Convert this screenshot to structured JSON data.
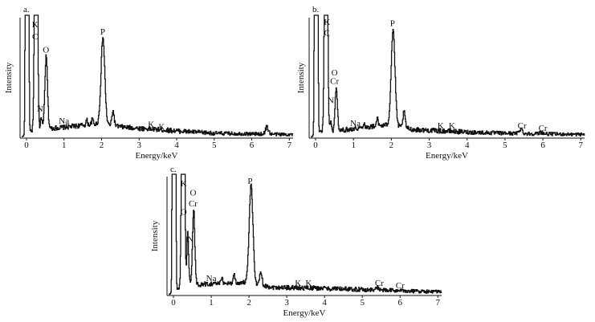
{
  "chart_data": [
    {
      "type": "line",
      "panel_label": "a.",
      "xlabel": "Energy/keV",
      "ylabel": "Intensity",
      "xlim": [
        -0.17,
        7.1
      ],
      "ylim": [
        0,
        100
      ],
      "xticks": [
        0,
        1,
        2,
        3,
        4,
        5,
        6,
        7
      ],
      "tick_labels": [
        "0",
        "1",
        "2",
        "3",
        "4",
        "5",
        "6",
        "7"
      ],
      "grid": false,
      "background": [
        [
          0.1,
          6
        ],
        [
          0.6,
          8
        ],
        [
          1.0,
          9
        ],
        [
          1.9,
          12
        ],
        [
          2.6,
          9
        ],
        [
          4,
          6
        ],
        [
          5,
          4
        ],
        [
          7.1,
          3
        ]
      ],
      "peaks": [
        {
          "energy": -0.02,
          "intensity": 400,
          "width": 0.015
        },
        {
          "energy": 0.04,
          "intensity": 400,
          "width": 0.015
        },
        {
          "energy": 0.25,
          "intensity": 400,
          "width": 0.03
        },
        {
          "energy": 0.39,
          "intensity": 10,
          "width": 0.02
        },
        {
          "energy": 0.52,
          "intensity": 60,
          "width": 0.035
        },
        {
          "energy": 1.6,
          "intensity": 4,
          "width": 0.02
        },
        {
          "energy": 1.75,
          "intensity": 4,
          "width": 0.02
        },
        {
          "energy": 2.03,
          "intensity": 72,
          "width": 0.05
        },
        {
          "energy": 2.3,
          "intensity": 12,
          "width": 0.03
        },
        {
          "energy": 6.4,
          "intensity": 6,
          "width": 0.04
        }
      ],
      "annotations": [
        {
          "text": "K",
          "energy": 0.23,
          "intensity": 92
        },
        {
          "text": "C",
          "energy": 0.23,
          "intensity": 82
        },
        {
          "text": "O",
          "energy": 0.52,
          "intensity": 71
        },
        {
          "text": "N",
          "energy": 0.36,
          "intensity": 22
        },
        {
          "text": "P",
          "energy": 2.03,
          "intensity": 86
        },
        {
          "text": "Na",
          "energy": 1.0,
          "intensity": 12
        },
        {
          "text": "K",
          "energy": 3.32,
          "intensity": 9
        },
        {
          "text": "K",
          "energy": 3.6,
          "intensity": 7
        }
      ]
    },
    {
      "type": "line",
      "panel_label": "b.",
      "xlabel": "Energy/keV",
      "ylabel": "Intensity",
      "xlim": [
        -0.17,
        7.1
      ],
      "ylim": [
        0,
        100
      ],
      "xticks": [
        0,
        1,
        2,
        3,
        4,
        5,
        6,
        7
      ],
      "tick_labels": [
        "0",
        "1",
        "2",
        "3",
        "4",
        "5",
        "6",
        "7"
      ],
      "grid": false,
      "background": [
        [
          0.1,
          5
        ],
        [
          0.6,
          6
        ],
        [
          1.0,
          8
        ],
        [
          1.9,
          11
        ],
        [
          2.6,
          7
        ],
        [
          4,
          5
        ],
        [
          5,
          4
        ],
        [
          7.1,
          3
        ]
      ],
      "peaks": [
        {
          "energy": -0.02,
          "intensity": 400,
          "width": 0.015
        },
        {
          "energy": 0.04,
          "intensity": 400,
          "width": 0.015
        },
        {
          "energy": 0.27,
          "intensity": 400,
          "width": 0.03
        },
        {
          "energy": 0.39,
          "intensity": 8,
          "width": 0.02
        },
        {
          "energy": 0.54,
          "intensity": 37,
          "width": 0.03
        },
        {
          "energy": 1.27,
          "intensity": 4,
          "width": 0.02
        },
        {
          "energy": 1.62,
          "intensity": 7,
          "width": 0.02
        },
        {
          "energy": 2.04,
          "intensity": 80,
          "width": 0.05
        },
        {
          "energy": 2.33,
          "intensity": 13,
          "width": 0.03
        },
        {
          "energy": 5.41,
          "intensity": 4,
          "width": 0.04
        },
        {
          "energy": 5.95,
          "intensity": 1.5,
          "width": 0.04
        }
      ],
      "annotations": [
        {
          "text": "K",
          "energy": 0.3,
          "intensity": 94
        },
        {
          "text": "C",
          "energy": 0.3,
          "intensity": 85
        },
        {
          "text": "O",
          "energy": 0.5,
          "intensity": 52
        },
        {
          "text": "Cr",
          "energy": 0.5,
          "intensity": 45
        },
        {
          "text": "N",
          "energy": 0.4,
          "intensity": 29
        },
        {
          "text": "P",
          "energy": 2.03,
          "intensity": 93
        },
        {
          "text": "Na",
          "energy": 1.05,
          "intensity": 10
        },
        {
          "text": "K",
          "energy": 3.3,
          "intensity": 8
        },
        {
          "text": "K",
          "energy": 3.6,
          "intensity": 8
        },
        {
          "text": "Cr",
          "energy": 5.45,
          "intensity": 8
        },
        {
          "text": "Cr",
          "energy": 6.0,
          "intensity": 6
        }
      ]
    },
    {
      "type": "line",
      "panel_label": "c.",
      "xlabel": "Energy/keV",
      "ylabel": "Intensity",
      "xlim": [
        -0.17,
        7.1
      ],
      "ylim": [
        0,
        100
      ],
      "xticks": [
        0,
        1,
        2,
        3,
        4,
        5,
        6,
        7
      ],
      "tick_labels": [
        "0",
        "1",
        "2",
        "3",
        "4",
        "5",
        "6",
        "7"
      ],
      "grid": false,
      "background": [
        [
          0.1,
          5
        ],
        [
          0.6,
          9
        ],
        [
          1.0,
          10
        ],
        [
          1.9,
          11
        ],
        [
          2.6,
          7
        ],
        [
          4,
          6
        ],
        [
          5,
          5
        ],
        [
          7.1,
          3
        ]
      ],
      "peaks": [
        {
          "energy": -0.02,
          "intensity": 400,
          "width": 0.015
        },
        {
          "energy": 0.04,
          "intensity": 400,
          "width": 0.015
        },
        {
          "energy": 0.25,
          "intensity": 400,
          "width": 0.03
        },
        {
          "energy": 0.37,
          "intensity": 45,
          "width": 0.02
        },
        {
          "energy": 0.41,
          "intensity": 10,
          "width": 0.015
        },
        {
          "energy": 0.53,
          "intensity": 64,
          "width": 0.03
        },
        {
          "energy": 1.28,
          "intensity": 4,
          "width": 0.02
        },
        {
          "energy": 1.6,
          "intensity": 8,
          "width": 0.02
        },
        {
          "energy": 2.05,
          "intensity": 82,
          "width": 0.05
        },
        {
          "energy": 2.31,
          "intensity": 12,
          "width": 0.03
        },
        {
          "energy": 5.41,
          "intensity": 2,
          "width": 0.04
        }
      ],
      "annotations": [
        {
          "text": "K",
          "energy": 0.27,
          "intensity": 92
        },
        {
          "text": "O",
          "energy": 0.27,
          "intensity": 68
        },
        {
          "text": "O",
          "energy": 0.52,
          "intensity": 84
        },
        {
          "text": "Cr",
          "energy": 0.52,
          "intensity": 75
        },
        {
          "text": "N",
          "energy": 0.45,
          "intensity": 45
        },
        {
          "text": "P",
          "energy": 2.03,
          "intensity": 94
        },
        {
          "text": "Na",
          "energy": 1.0,
          "intensity": 12
        },
        {
          "text": "K",
          "energy": 3.3,
          "intensity": 8
        },
        {
          "text": "K",
          "energy": 3.58,
          "intensity": 8
        },
        {
          "text": "Cr",
          "energy": 5.45,
          "intensity": 8
        },
        {
          "text": "Cr",
          "energy": 6.0,
          "intensity": 6
        }
      ]
    }
  ]
}
